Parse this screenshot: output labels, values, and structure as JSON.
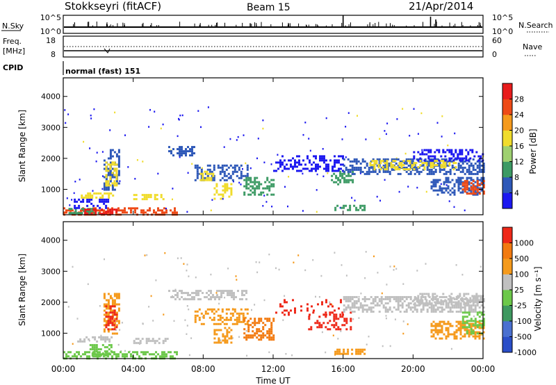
{
  "header": {
    "station": "Stokkseyri (fitACF)",
    "beam": "Beam 15",
    "date": "21/Apr/2014"
  },
  "nsky_panel": {
    "left_label": "N.Sky",
    "left_ticks": [
      "10^5",
      "10^0"
    ],
    "right_ticks": [
      "10^5",
      "10^0"
    ],
    "right_label": "N.Search"
  },
  "freq_panel": {
    "left_label_1": "Freq.",
    "left_label_2": "[MHz]",
    "left_ticks": [
      "18",
      "8"
    ],
    "right_ticks": [
      "60",
      "0"
    ],
    "right_label": "Nave"
  },
  "cpid_panel": {
    "label": "CPID",
    "mode_text": "normal (fast) 151"
  },
  "time_axis": {
    "label": "Time UT",
    "ticks": [
      "00:00",
      "04:00",
      "08:00",
      "12:00",
      "16:00",
      "20:00",
      "00:00"
    ]
  },
  "chart_data": [
    {
      "type": "heatmap",
      "name": "power",
      "ylabel": "Slant Range [km]",
      "yticks": [
        "1000",
        "2000",
        "3000",
        "4000"
      ],
      "ylim": [
        180,
        4600
      ],
      "xlim": [
        0,
        24
      ],
      "colorbar_label": "Power [dB]",
      "colorbar_ticks": [
        "4",
        "8",
        "12",
        "16",
        "20",
        "24",
        "28"
      ],
      "colorbar_colors": [
        "#1c18f0",
        "#2e58b8",
        "#3c9a64",
        "#9ed070",
        "#f0dc2c",
        "#f59a1c",
        "#ee4a16",
        "#e81c1c"
      ]
    },
    {
      "type": "heatmap",
      "name": "velocity",
      "ylabel": "Slant Range [km]",
      "yticks": [
        "1000",
        "2000",
        "3000",
        "4000"
      ],
      "ylim": [
        180,
        4600
      ],
      "xlim": [
        0,
        24
      ],
      "colorbar_label": "Velocity [m s⁻¹]",
      "colorbar_ticks": [
        "1000",
        "500",
        "100",
        "25",
        "-25",
        "-100",
        "-500",
        "-1000"
      ],
      "colorbar_colors": [
        "#2a4ec8",
        "#4a70d0",
        "#3e9860",
        "#6cc84a",
        "#c0c0c0",
        "#f59a1c",
        "#f27a10",
        "#ee2818"
      ]
    }
  ]
}
